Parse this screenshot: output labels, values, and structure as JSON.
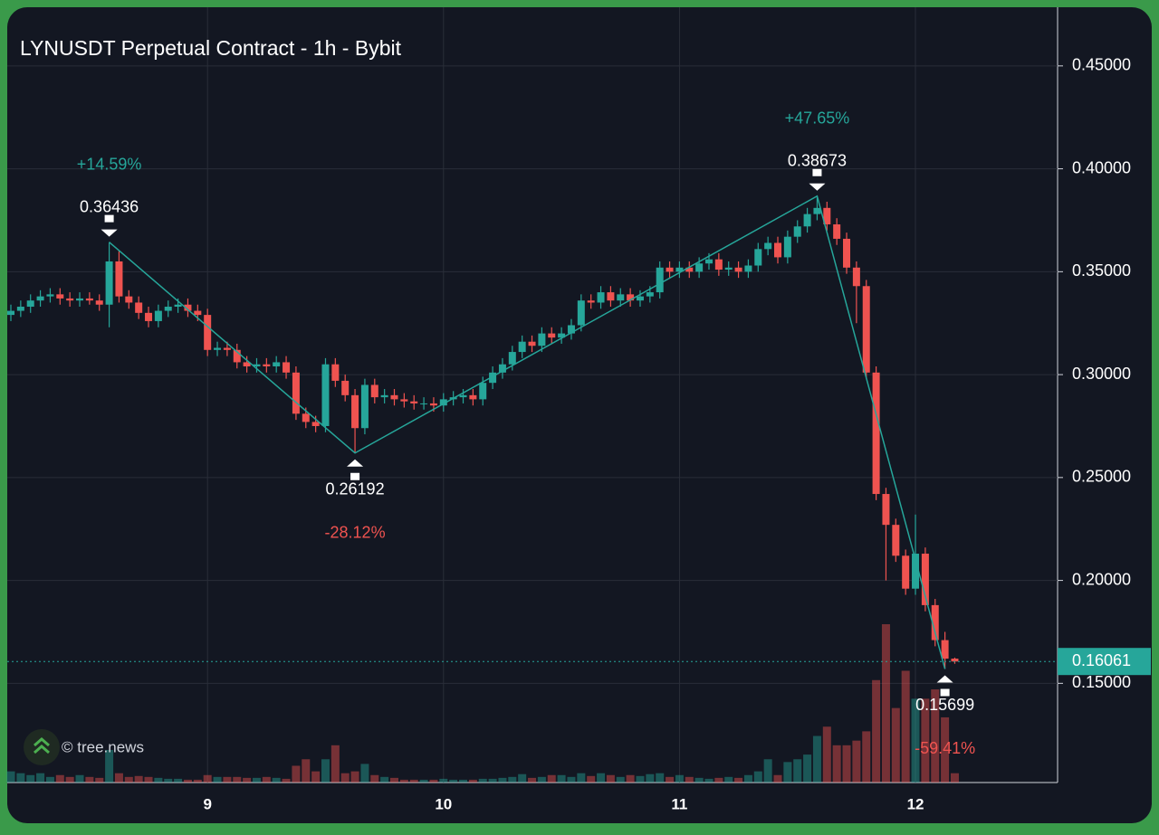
{
  "chart_data": {
    "type": "candlestick",
    "title": "LYNUSDT Perpetual Contract - 1h - Bybit",
    "watermark": "© tree.news",
    "categories": [
      null,
      null,
      null,
      null,
      null,
      null,
      null,
      null,
      null,
      null,
      null,
      null,
      null,
      null,
      null,
      null,
      null,
      null,
      null,
      null,
      "9",
      null,
      null,
      null,
      null,
      null,
      null,
      null,
      null,
      null,
      null,
      null,
      null,
      null,
      null,
      null,
      null,
      null,
      null,
      null,
      null,
      null,
      null,
      null,
      "10",
      null,
      null,
      null,
      null,
      null,
      null,
      null,
      null,
      null,
      null,
      null,
      null,
      null,
      null,
      null,
      null,
      null,
      null,
      null,
      null,
      null,
      null,
      null,
      "11",
      null,
      null,
      null,
      null,
      null,
      null,
      null,
      null,
      null,
      null,
      null,
      null,
      null,
      null,
      null,
      null,
      null,
      null,
      null,
      null,
      null,
      null,
      null,
      "12",
      null,
      null,
      null,
      null
    ],
    "open": [
      0.329,
      0.331,
      0.333,
      0.336,
      0.338,
      0.339,
      0.337,
      0.336,
      0.337,
      0.336,
      0.334,
      0.355,
      0.338,
      0.335,
      0.33,
      0.326,
      0.331,
      0.333,
      0.334,
      0.331,
      0.329,
      0.312,
      0.313,
      0.312,
      0.306,
      0.304,
      0.305,
      0.304,
      0.306,
      0.301,
      0.281,
      0.277,
      0.275,
      0.305,
      0.297,
      0.29,
      0.274,
      0.295,
      0.289,
      0.29,
      0.288,
      0.287,
      0.286,
      0.286,
      0.285,
      0.288,
      0.289,
      0.29,
      0.288,
      0.296,
      0.301,
      0.305,
      0.311,
      0.316,
      0.314,
      0.32,
      0.318,
      0.32,
      0.324,
      0.336,
      0.335,
      0.34,
      0.336,
      0.339,
      0.336,
      0.338,
      0.34,
      0.352,
      0.35,
      0.352,
      0.35,
      0.354,
      0.356,
      0.351,
      0.352,
      0.35,
      0.353,
      0.361,
      0.364,
      0.357,
      0.367,
      0.372,
      0.378,
      0.381,
      0.373,
      0.366,
      0.352,
      0.343,
      0.301,
      0.242,
      0.227,
      0.212,
      0.196,
      0.213,
      0.188,
      0.171,
      0.162
    ],
    "high": [
      0.334,
      0.336,
      0.339,
      0.341,
      0.342,
      0.342,
      0.34,
      0.34,
      0.34,
      0.339,
      0.36436,
      0.36,
      0.341,
      0.338,
      0.333,
      0.334,
      0.336,
      0.337,
      0.337,
      0.334,
      0.332,
      0.316,
      0.316,
      0.315,
      0.309,
      0.308,
      0.308,
      0.309,
      0.309,
      0.304,
      0.284,
      0.28,
      0.308,
      0.308,
      0.3,
      0.293,
      0.298,
      0.298,
      0.293,
      0.293,
      0.291,
      0.29,
      0.289,
      0.289,
      0.291,
      0.292,
      0.293,
      0.293,
      0.299,
      0.304,
      0.308,
      0.314,
      0.319,
      0.319,
      0.323,
      0.323,
      0.323,
      0.327,
      0.339,
      0.339,
      0.343,
      0.343,
      0.342,
      0.342,
      0.341,
      0.343,
      0.355,
      0.355,
      0.355,
      0.355,
      0.357,
      0.359,
      0.359,
      0.355,
      0.355,
      0.356,
      0.364,
      0.367,
      0.367,
      0.37,
      0.375,
      0.381,
      0.38673,
      0.384,
      0.376,
      0.369,
      0.355,
      0.346,
      0.304,
      0.245,
      0.23,
      0.215,
      0.232,
      0.216,
      0.191,
      0.175,
      0.1625
    ],
    "low": [
      0.326,
      0.328,
      0.33,
      0.333,
      0.335,
      0.334,
      0.333,
      0.333,
      0.334,
      0.331,
      0.323,
      0.335,
      0.332,
      0.327,
      0.323,
      0.323,
      0.328,
      0.33,
      0.328,
      0.326,
      0.309,
      0.309,
      0.309,
      0.303,
      0.301,
      0.301,
      0.301,
      0.301,
      0.298,
      0.278,
      0.274,
      0.272,
      0.272,
      0.294,
      0.287,
      0.26192,
      0.271,
      0.286,
      0.286,
      0.285,
      0.284,
      0.283,
      0.283,
      0.282,
      0.282,
      0.285,
      0.286,
      0.285,
      0.285,
      0.293,
      0.298,
      0.302,
      0.308,
      0.311,
      0.311,
      0.315,
      0.315,
      0.317,
      0.321,
      0.332,
      0.332,
      0.333,
      0.333,
      0.333,
      0.333,
      0.335,
      0.337,
      0.347,
      0.347,
      0.347,
      0.347,
      0.351,
      0.348,
      0.348,
      0.347,
      0.347,
      0.35,
      0.358,
      0.354,
      0.354,
      0.364,
      0.369,
      0.375,
      0.37,
      0.363,
      0.349,
      0.325,
      0.298,
      0.239,
      0.2,
      0.209,
      0.193,
      0.193,
      0.185,
      0.168,
      0.15699,
      0.1595
    ],
    "close": [
      0.331,
      0.333,
      0.336,
      0.338,
      0.339,
      0.337,
      0.336,
      0.337,
      0.336,
      0.334,
      0.355,
      0.338,
      0.335,
      0.33,
      0.326,
      0.331,
      0.333,
      0.334,
      0.331,
      0.329,
      0.312,
      0.313,
      0.312,
      0.306,
      0.304,
      0.305,
      0.304,
      0.306,
      0.301,
      0.281,
      0.277,
      0.275,
      0.305,
      0.297,
      0.29,
      0.274,
      0.295,
      0.289,
      0.29,
      0.288,
      0.287,
      0.286,
      0.286,
      0.285,
      0.288,
      0.289,
      0.29,
      0.288,
      0.296,
      0.301,
      0.305,
      0.311,
      0.316,
      0.314,
      0.32,
      0.318,
      0.32,
      0.324,
      0.336,
      0.335,
      0.34,
      0.336,
      0.339,
      0.336,
      0.338,
      0.34,
      0.352,
      0.35,
      0.352,
      0.35,
      0.354,
      0.356,
      0.351,
      0.352,
      0.35,
      0.353,
      0.361,
      0.364,
      0.357,
      0.367,
      0.372,
      0.378,
      0.381,
      0.373,
      0.366,
      0.352,
      0.343,
      0.301,
      0.242,
      0.227,
      0.212,
      0.196,
      0.213,
      0.188,
      0.171,
      0.162,
      0.16061
    ],
    "volume": [
      12,
      10,
      8,
      10,
      6,
      8,
      6,
      8,
      6,
      5,
      35,
      10,
      6,
      7,
      6,
      5,
      4,
      4,
      3,
      3,
      8,
      6,
      6,
      6,
      5,
      5,
      6,
      5,
      4,
      18,
      25,
      12,
      25,
      40,
      10,
      12,
      20,
      8,
      6,
      5,
      3,
      3,
      3,
      3,
      4,
      3,
      3,
      3,
      4,
      4,
      5,
      6,
      9,
      5,
      6,
      8,
      8,
      6,
      10,
      7,
      10,
      8,
      6,
      8,
      7,
      9,
      10,
      6,
      8,
      6,
      5,
      4,
      5,
      6,
      5,
      8,
      12,
      25,
      8,
      22,
      25,
      30,
      50,
      60,
      40,
      40,
      45,
      55,
      110,
      170,
      80,
      120,
      90,
      90,
      100,
      70,
      10
    ],
    "up_color": "#26a69a",
    "down_color": "#ef5350",
    "ylim": [
      0.1018,
      0.4785
    ],
    "yticks": [
      {
        "value": 0.15,
        "label": "0.15000"
      },
      {
        "value": 0.2,
        "label": "0.20000"
      },
      {
        "value": 0.25,
        "label": "0.25000"
      },
      {
        "value": 0.3,
        "label": "0.30000"
      },
      {
        "value": 0.35,
        "label": "0.35000"
      },
      {
        "value": 0.4,
        "label": "0.40000"
      },
      {
        "value": 0.45,
        "label": "0.45000"
      }
    ],
    "grid": true,
    "last_price": 0.16061,
    "pivots": [
      {
        "candle": 10,
        "value": 0.36436,
        "change": {
          "value": 14.59,
          "label": "+14.59%"
        }
      },
      {
        "candle": 35,
        "value": 0.26192,
        "change": {
          "value": -28.12,
          "label": "-28.12%"
        }
      },
      {
        "candle": 82,
        "value": 0.38673,
        "change": {
          "value": 47.65,
          "label": "+47.65%"
        }
      },
      {
        "candle": 95,
        "value": 0.15699,
        "change": {
          "value": -59.41,
          "label": "-59.41%"
        }
      }
    ]
  }
}
